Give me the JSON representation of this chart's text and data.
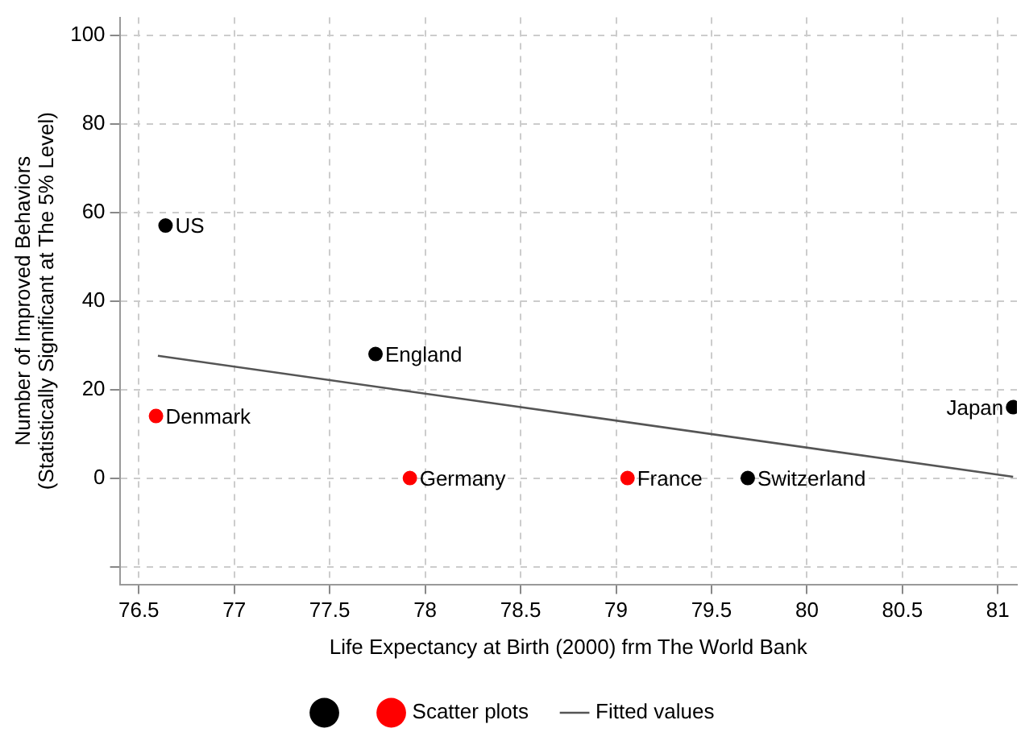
{
  "chart_data": {
    "type": "scatter",
    "xlabel": "Life Expectancy at Birth (2000) frm The World Bank",
    "ylabel": "Number of Improved Behaviors\n(Statistically Significant at The 5% Level)",
    "xlim": [
      76.4,
      81.1
    ],
    "xticks": [
      76.5,
      77,
      77.5,
      78,
      78.5,
      79,
      79.5,
      80,
      80.5,
      81
    ],
    "ylim": [
      -24,
      104
    ],
    "yticks": [
      {
        "value": -20,
        "label": null
      },
      0,
      20,
      40,
      60,
      80,
      100
    ],
    "grid": true,
    "legend": "bottom",
    "marker": "circle",
    "series": [
      {
        "color": "#000000",
        "x": [
          76.64,
          77.74,
          79.69,
          81.08
        ],
        "values": [
          57,
          28,
          0,
          16
        ]
      },
      {
        "name": "Scatter plots",
        "color": "#ff0000",
        "x": [
          76.59,
          77.92,
          79.06
        ],
        "values": [
          14,
          0,
          0
        ]
      },
      {
        "name": "Fitted values",
        "type": "line",
        "marker": "none",
        "line_style": "solid",
        "color": "#555555",
        "x": [
          76.6,
          81.08
        ],
        "values": [
          27.6,
          0.3
        ]
      }
    ],
    "annotations": [
      {
        "text": "US",
        "x": 76.64,
        "y": 57
      },
      {
        "text": "England",
        "x": 77.74,
        "y": 28
      },
      {
        "text": "Denmark",
        "x": 76.59,
        "y": 14
      },
      {
        "text": "Germany",
        "x": 77.92,
        "y": 0
      },
      {
        "text": "France",
        "x": 79.06,
        "y": 0
      },
      {
        "text": "Switzerland",
        "x": 79.69,
        "y": 0
      },
      {
        "text": "Japan",
        "x": 81.08,
        "y": 16
      }
    ]
  }
}
